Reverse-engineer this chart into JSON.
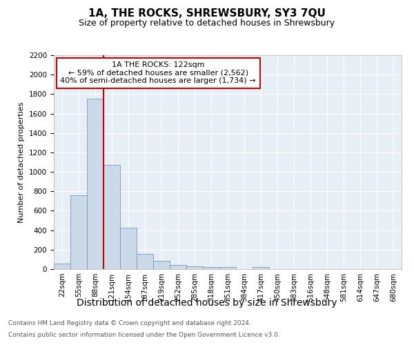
{
  "title": "1A, THE ROCKS, SHREWSBURY, SY3 7QU",
  "subtitle": "Size of property relative to detached houses in Shrewsbury",
  "xlabel": "Distribution of detached houses by size in Shrewsbury",
  "ylabel": "Number of detached properties",
  "footnote1": "Contains HM Land Registry data © Crown copyright and database right 2024.",
  "footnote2": "Contains public sector information licensed under the Open Government Licence v3.0.",
  "bar_labels": [
    "22sqm",
    "55sqm",
    "88sqm",
    "121sqm",
    "154sqm",
    "187sqm",
    "219sqm",
    "252sqm",
    "285sqm",
    "318sqm",
    "351sqm",
    "384sqm",
    "417sqm",
    "450sqm",
    "483sqm",
    "516sqm",
    "548sqm",
    "581sqm",
    "614sqm",
    "647sqm",
    "680sqm"
  ],
  "bar_values": [
    60,
    760,
    1750,
    1075,
    425,
    155,
    85,
    45,
    30,
    20,
    20,
    0,
    20,
    0,
    0,
    0,
    0,
    0,
    0,
    0,
    0
  ],
  "bar_color": "#ccd9e8",
  "bar_edge_color": "#7399be",
  "property_line_index": 3,
  "property_line_label": "1A THE ROCKS: 122sqm",
  "annotation_line1": "← 59% of detached houses are smaller (2,562)",
  "annotation_line2": "40% of semi-detached houses are larger (1,734) →",
  "annotation_box_color": "#ffffff",
  "annotation_box_edge": "#cc0000",
  "property_line_color": "#cc0000",
  "ylim": [
    0,
    2200
  ],
  "yticks": [
    0,
    200,
    400,
    600,
    800,
    1000,
    1200,
    1400,
    1600,
    1800,
    2000,
    2200
  ],
  "bg_color": "#e8eef5",
  "grid_color": "#ffffff",
  "title_fontsize": 11,
  "subtitle_fontsize": 9,
  "ylabel_fontsize": 8,
  "xlabel_fontsize": 10,
  "tick_fontsize": 7.5,
  "annotation_fontsize": 8,
  "footnote_fontsize": 6.5
}
